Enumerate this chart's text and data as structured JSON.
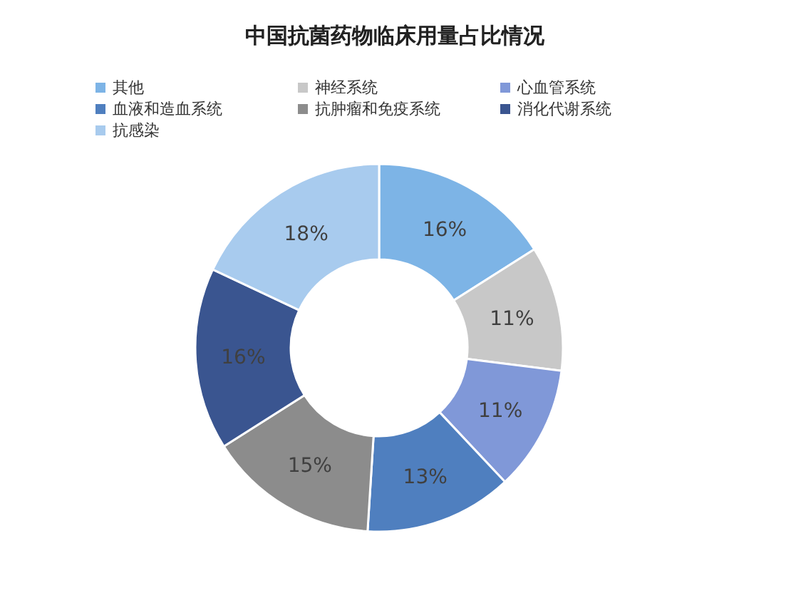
{
  "chart_data": {
    "type": "donut",
    "title": "中国抗菌药物临床用量占比情况",
    "categories": [
      "其他",
      "神经系统",
      "心血管系统",
      "血液和造血系统",
      "抗肿瘤和免疫系统",
      "消化代谢系统",
      "抗感染"
    ],
    "values": [
      16,
      11,
      11,
      13,
      15,
      16,
      18
    ],
    "colors": [
      "#7db4e6",
      "#c8c8c8",
      "#8098d8",
      "#4f7fbf",
      "#8c8c8c",
      "#3a5590",
      "#a8cbee"
    ],
    "value_labels": [
      "16%",
      "11%",
      "11%",
      "13%",
      "15%",
      "16%",
      "18%"
    ],
    "legend": "top"
  }
}
